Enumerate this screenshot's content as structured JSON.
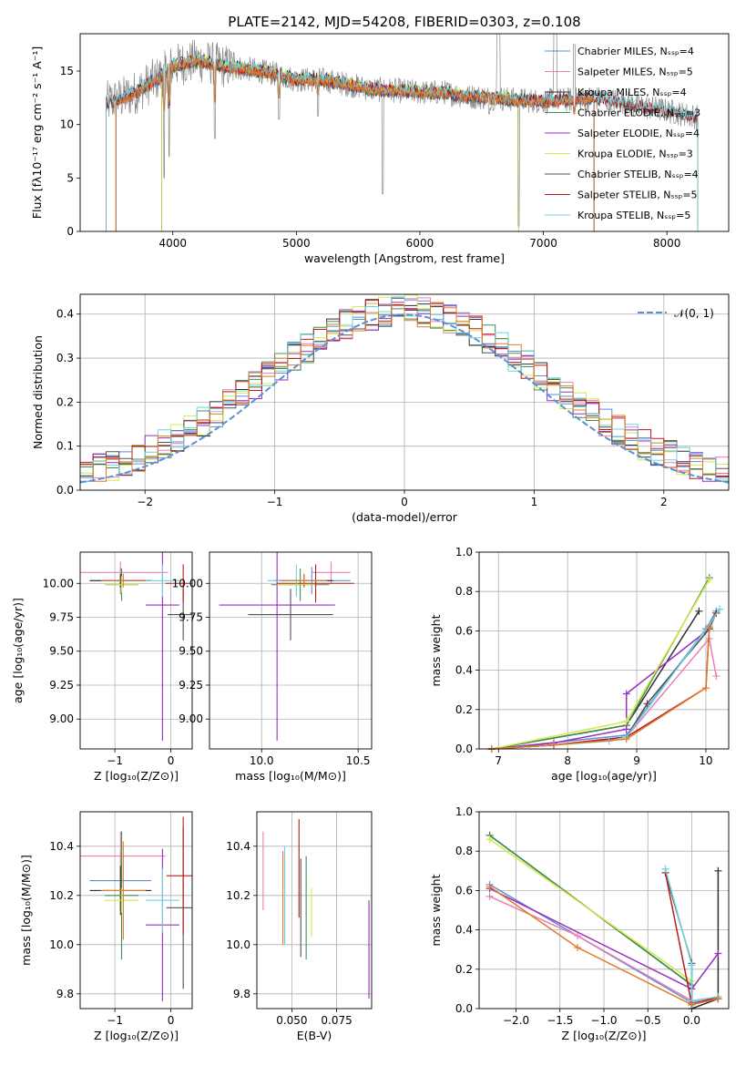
{
  "title": "PLATE=2142, MJD=54208, FIBERID=0303, z=0.108",
  "colors": {
    "Chabrier MILES": "#5b8fd6",
    "Salpeter MILES": "#e87fb5",
    "Kroupa MILES": "#2f2f2f",
    "Chabrier ELODIE": "#3f8f52",
    "Salpeter ELODIE": "#9b2fbf",
    "Kroupa ELODIE": "#d6e84a",
    "Chabrier STELIB": "#505050",
    "Salpeter STELIB": "#b81c1c",
    "Kroupa STELIB": "#6fd3de",
    "extra_orange": "#e07b2a",
    "gauss": "#5b8fd6"
  },
  "chart_data": [
    {
      "type": "line",
      "name": "spectrum",
      "xlabel": "wavelength [Angstrom, rest frame]",
      "ylabel": "Flux [fλ10⁻¹⁷ erg cm⁻² s⁻¹ A⁻¹]",
      "xlim": [
        3250,
        8500
      ],
      "ylim": [
        0,
        18.5
      ],
      "xticks": [
        4000,
        5000,
        6000,
        7000,
        8000
      ],
      "yticks": [
        0,
        5,
        10,
        15
      ],
      "legend_position": "top-right",
      "legend": [
        {
          "label": "Chabrier MILES, Nₛₛₚ=4",
          "color_key": "Chabrier MILES"
        },
        {
          "label": "Salpeter MILES, Nₛₛₚ=5",
          "color_key": "Salpeter MILES"
        },
        {
          "label": "Kroupa MILES, Nₛₛₚ=4",
          "color_key": "Kroupa MILES"
        },
        {
          "label": "Chabrier ELODIE, Nₛₛₚ=3",
          "color_key": "Chabrier ELODIE"
        },
        {
          "label": "Salpeter ELODIE, Nₛₛₚ=4",
          "color_key": "Salpeter ELODIE"
        },
        {
          "label": "Kroupa ELODIE, Nₛₛₚ=3",
          "color_key": "Kroupa ELODIE"
        },
        {
          "label": "Chabrier STELIB, Nₛₛₚ=4",
          "color_key": "Chabrier STELIB"
        },
        {
          "label": "Salpeter STELIB, Nₛₛₚ=5",
          "color_key": "Salpeter STELIB"
        },
        {
          "label": "Kroupa STELIB, Nₛₛₚ=5",
          "color_key": "Kroupa STELIB"
        }
      ],
      "continuum": [
        [
          3450,
          12.0
        ],
        [
          3600,
          12.5
        ],
        [
          3700,
          13.0
        ],
        [
          3800,
          13.8
        ],
        [
          3900,
          14.5
        ],
        [
          4000,
          15.5
        ],
        [
          4200,
          16.0
        ],
        [
          4400,
          15.5
        ],
        [
          4600,
          15.2
        ],
        [
          4800,
          14.8
        ],
        [
          5000,
          14.2
        ],
        [
          5200,
          14.2
        ],
        [
          5400,
          13.8
        ],
        [
          5600,
          13.3
        ],
        [
          5800,
          13.2
        ],
        [
          6000,
          13.0
        ],
        [
          6200,
          13.0
        ],
        [
          6400,
          12.6
        ],
        [
          6600,
          12.5
        ],
        [
          6800,
          12.3
        ],
        [
          7000,
          12.2
        ],
        [
          7200,
          12.3
        ],
        [
          7400,
          12.5
        ],
        [
          7600,
          12.2
        ],
        [
          7800,
          11.7
        ],
        [
          8000,
          11.3
        ],
        [
          8250,
          10.7
        ]
      ],
      "dips": [
        [
          3930,
          5.0
        ],
        [
          3970,
          7.0
        ],
        [
          4340,
          8.7
        ],
        [
          4860,
          10.5
        ],
        [
          5175,
          10.8
        ],
        [
          5700,
          3.5
        ],
        [
          6560,
          11.0
        ],
        [
          6800,
          0.5
        ],
        [
          7250,
          9.0
        ]
      ]
    },
    {
      "type": "line",
      "name": "residual-histogram",
      "xlabel": "(data-model)/error",
      "ylabel": "Normed distribution",
      "xlim": [
        -2.5,
        2.5
      ],
      "ylim": [
        0,
        0.445
      ],
      "xticks": [
        -2,
        -1,
        0,
        1,
        2
      ],
      "yticks": [
        0.0,
        0.1,
        0.2,
        0.3,
        0.4
      ],
      "legend": "𝒩(0, 1)",
      "bin_width": 0.1
    },
    {
      "type": "scatter",
      "name": "age-vs-Z",
      "xlabel": "Z [log₁₀(Z/Z⊙)]",
      "ylabel": "age  [log₁₀(age/yr)]",
      "xlim": [
        -1.62,
        0.38
      ],
      "ylim": [
        8.78,
        10.23
      ],
      "xticks": [
        -1,
        0
      ],
      "yticks": [
        9.0,
        9.25,
        9.5,
        9.75,
        10.0
      ],
      "points": [
        {
          "c": "Chabrier MILES",
          "x": -0.9,
          "xe": 0.55,
          "y": 10.02,
          "ye": 0.1
        },
        {
          "c": "Salpeter MILES",
          "x": -0.9,
          "xe": 0.85,
          "y": 10.08,
          "ye": 0.08
        },
        {
          "c": "Kroupa MILES",
          "x": -0.9,
          "xe": 0.55,
          "y": 10.02,
          "ye": 0.05
        },
        {
          "c": "Chabrier ELODIE",
          "x": -0.88,
          "xe": 0.3,
          "y": 9.99,
          "ye": 0.12
        },
        {
          "c": "Salpeter ELODIE",
          "x": -0.15,
          "xe": 0.3,
          "y": 9.84,
          "ye": 1.0
        },
        {
          "c": "Kroupa ELODIE",
          "x": -0.88,
          "xe": 0.3,
          "y": 9.99,
          "ye": 0.06
        },
        {
          "c": "Chabrier STELIB",
          "x": 0.22,
          "xe": 0.28,
          "y": 9.77,
          "ye": 0.19
        },
        {
          "c": "Salpeter STELIB",
          "x": 0.22,
          "xe": 0.32,
          "y": 10.0,
          "ye": 0.14
        },
        {
          "c": "Kroupa STELIB",
          "x": -0.15,
          "xe": 0.3,
          "y": 10.02,
          "ye": 0.12
        },
        {
          "c": "extra_orange",
          "x": -0.85,
          "xe": 0.4,
          "y": 10.02,
          "ye": 0.05
        }
      ]
    },
    {
      "type": "scatter",
      "name": "age-vs-mass",
      "xlabel": "mass [log₁₀(M/M⊙)]",
      "ylabel": "",
      "xlim": [
        9.73,
        10.57
      ],
      "ylim": [
        8.78,
        10.23
      ],
      "xticks": [
        10.0,
        10.5
      ],
      "yticks": [
        9.0,
        9.25,
        9.5,
        9.75,
        10.0
      ],
      "points": [
        {
          "c": "Chabrier MILES",
          "x": 10.26,
          "xe": 0.2,
          "y": 10.02,
          "ye": 0.1
        },
        {
          "c": "Salpeter MILES",
          "x": 10.36,
          "xe": 0.1,
          "y": 10.08,
          "ye": 0.08
        },
        {
          "c": "Kroupa MILES",
          "x": 10.22,
          "xe": 0.15,
          "y": 10.02,
          "ye": 0.05
        },
        {
          "c": "Chabrier ELODIE",
          "x": 10.2,
          "xe": 0.15,
          "y": 9.99,
          "ye": 0.12
        },
        {
          "c": "Salpeter ELODIE",
          "x": 10.08,
          "xe": 0.3,
          "y": 9.84,
          "ye": 1.0
        },
        {
          "c": "Kroupa ELODIE",
          "x": 10.18,
          "xe": 0.1,
          "y": 9.99,
          "ye": 0.06
        },
        {
          "c": "Chabrier STELIB",
          "x": 10.15,
          "xe": 0.22,
          "y": 9.77,
          "ye": 0.19
        },
        {
          "c": "Salpeter STELIB",
          "x": 10.28,
          "xe": 0.2,
          "y": 10.0,
          "ye": 0.14
        },
        {
          "c": "Kroupa STELIB",
          "x": 10.18,
          "xe": 0.15,
          "y": 10.02,
          "ye": 0.12
        },
        {
          "c": "extra_orange",
          "x": 10.22,
          "xe": 0.12,
          "y": 10.02,
          "ye": 0.05
        }
      ]
    },
    {
      "type": "line",
      "name": "mass-weight-vs-age",
      "xlabel": "age  [log₁₀(age/yr)]",
      "ylabel": "mass weight",
      "xlim": [
        6.72,
        10.33
      ],
      "ylim": [
        0,
        1.0
      ],
      "xticks": [
        7,
        8,
        9,
        10
      ],
      "yticks": [
        0.0,
        0.2,
        0.4,
        0.6,
        0.8,
        1.0
      ],
      "series": [
        {
          "c": "Chabrier MILES",
          "pts": [
            [
              6.9,
              0.0
            ],
            [
              8.85,
              0.07
            ],
            [
              10.0,
              0.61
            ],
            [
              10.15,
              0.7
            ]
          ]
        },
        {
          "c": "Salpeter MILES",
          "pts": [
            [
              6.9,
              0.0
            ],
            [
              7.8,
              0.02
            ],
            [
              8.85,
              0.06
            ],
            [
              10.05,
              0.56
            ],
            [
              10.15,
              0.37
            ]
          ]
        },
        {
          "c": "Kroupa MILES",
          "pts": [
            [
              6.9,
              0.0
            ],
            [
              8.85,
              0.12
            ],
            [
              9.9,
              0.7
            ]
          ]
        },
        {
          "c": "Chabrier ELODIE",
          "pts": [
            [
              6.9,
              0.0
            ],
            [
              8.85,
              0.12
            ],
            [
              10.05,
              0.87
            ]
          ]
        },
        {
          "c": "Salpeter ELODIE",
          "pts": [
            [
              6.9,
              0.0
            ],
            [
              7.8,
              0.03
            ],
            [
              8.85,
              0.1
            ],
            [
              8.85,
              0.28
            ],
            [
              10.05,
              0.61
            ]
          ]
        },
        {
          "c": "Kroupa ELODIE",
          "pts": [
            [
              6.9,
              0.0
            ],
            [
              8.85,
              0.14
            ],
            [
              10.05,
              0.86
            ]
          ]
        },
        {
          "c": "Chabrier STELIB",
          "pts": [
            [
              6.9,
              0.0
            ],
            [
              7.8,
              0.02
            ],
            [
              8.85,
              0.06
            ],
            [
              9.15,
              0.23
            ],
            [
              10.05,
              0.61
            ],
            [
              10.15,
              0.69
            ]
          ]
        },
        {
          "c": "Salpeter STELIB",
          "pts": [
            [
              6.9,
              0.0
            ],
            [
              7.8,
              0.02
            ],
            [
              8.85,
              0.06
            ],
            [
              10.0,
              0.31
            ],
            [
              10.05,
              0.62
            ],
            [
              10.15,
              0.69
            ]
          ]
        },
        {
          "c": "Kroupa STELIB",
          "pts": [
            [
              6.9,
              0.0
            ],
            [
              7.8,
              0.02
            ],
            [
              8.6,
              0.04
            ],
            [
              8.85,
              0.06
            ],
            [
              10.05,
              0.63
            ],
            [
              10.2,
              0.71
            ]
          ]
        },
        {
          "c": "extra_orange",
          "pts": [
            [
              6.9,
              0.0
            ],
            [
              7.8,
              0.02
            ],
            [
              8.85,
              0.05
            ],
            [
              10.0,
              0.31
            ],
            [
              10.05,
              0.62
            ]
          ]
        }
      ]
    },
    {
      "type": "scatter",
      "name": "mass-vs-Z",
      "xlabel": "Z [log₁₀(Z/Z⊙)]",
      "ylabel": "mass [log₁₀(M/M⊙)]",
      "xlim": [
        -1.62,
        0.38
      ],
      "ylim": [
        9.74,
        10.54
      ],
      "xticks": [
        -1,
        0
      ],
      "yticks": [
        9.8,
        10.0,
        10.2,
        10.4
      ],
      "points": [
        {
          "c": "Chabrier MILES",
          "x": -0.9,
          "xe": 0.55,
          "y": 10.26,
          "ye": 0.12
        },
        {
          "c": "Salpeter MILES",
          "x": -0.9,
          "xe": 0.8,
          "y": 10.36,
          "ye": 0.1
        },
        {
          "c": "Kroupa MILES",
          "x": -0.9,
          "xe": 0.55,
          "y": 10.22,
          "ye": 0.1
        },
        {
          "c": "Chabrier ELODIE",
          "x": -0.88,
          "xe": 0.3,
          "y": 10.2,
          "ye": 0.26
        },
        {
          "c": "Salpeter ELODIE",
          "x": -0.15,
          "xe": 0.3,
          "y": 10.08,
          "ye": 0.31
        },
        {
          "c": "Kroupa ELODIE",
          "x": -0.88,
          "xe": 0.3,
          "y": 10.18,
          "ye": 0.05
        },
        {
          "c": "Chabrier STELIB",
          "x": 0.22,
          "xe": 0.3,
          "y": 10.15,
          "ye": 0.33
        },
        {
          "c": "Salpeter STELIB",
          "x": 0.22,
          "xe": 0.3,
          "y": 10.28,
          "ye": 0.24
        },
        {
          "c": "Kroupa STELIB",
          "x": -0.15,
          "xe": 0.3,
          "y": 10.18,
          "ye": 0.13
        },
        {
          "c": "extra_orange",
          "x": -0.85,
          "xe": 0.4,
          "y": 10.22,
          "ye": 0.2
        }
      ]
    },
    {
      "type": "scatter",
      "name": "mass-vs-ebv",
      "xlabel": "E(B-V)",
      "ylabel": "",
      "xlim": [
        0.0305,
        0.0945
      ],
      "ylim": [
        9.74,
        10.54
      ],
      "xticks": [
        0.05,
        0.075
      ],
      "yticks": [
        9.8,
        10.0,
        10.2,
        10.4
      ],
      "points": [
        {
          "c": "Salpeter MILES",
          "x": 0.034,
          "y": 10.3,
          "ye": 0.16
        },
        {
          "c": "extra_orange",
          "x": 0.045,
          "y": 10.19,
          "ye": 0.19
        },
        {
          "c": "Kroupa STELIB",
          "x": 0.046,
          "y": 10.2,
          "ye": 0.2
        },
        {
          "c": "Salpeter STELIB",
          "x": 0.054,
          "y": 10.31,
          "ye": 0.2
        },
        {
          "c": "Chabrier STELIB",
          "x": 0.055,
          "y": 10.15,
          "ye": 0.2
        },
        {
          "c": "Chabrier ELODIE",
          "x": 0.058,
          "y": 10.15,
          "ye": 0.21
        },
        {
          "c": "Kroupa ELODIE",
          "x": 0.061,
          "y": 10.13,
          "ye": 0.1
        },
        {
          "c": "Salpeter ELODIE",
          "x": 0.093,
          "y": 9.98,
          "ye": 0.2
        }
      ]
    },
    {
      "type": "line",
      "name": "mass-weight-vs-Z",
      "xlabel": "Z [log₁₀(Z/Z⊙)]",
      "ylabel": "mass weight",
      "xlim": [
        -2.42,
        0.42
      ],
      "ylim": [
        0,
        1.0
      ],
      "xticks": [
        -2.0,
        -1.5,
        -1.0,
        -0.5,
        0.0
      ],
      "yticks": [
        0.0,
        0.2,
        0.4,
        0.6,
        0.8,
        1.0
      ],
      "series": [
        {
          "c": "Chabrier MILES",
          "pts": [
            [
              -2.3,
              0.63
            ],
            [
              0.0,
              0.03
            ],
            [
              0.3,
              0.05
            ]
          ]
        },
        {
          "c": "Salpeter MILES",
          "pts": [
            [
              -2.3,
              0.57
            ],
            [
              -1.3,
              0.37
            ],
            [
              0.0,
              0.04
            ],
            [
              0.3,
              0.05
            ]
          ]
        },
        {
          "c": "Kroupa MILES",
          "pts": [
            [
              -2.3,
              0.88
            ],
            [
              0.0,
              0.12
            ],
            [
              0.0,
              0.0
            ],
            [
              0.3,
              0.05
            ],
            [
              0.3,
              0.7
            ]
          ]
        },
        {
          "c": "Chabrier ELODIE",
          "pts": [
            [
              -2.3,
              0.88
            ],
            [
              0.0,
              0.12
            ]
          ]
        },
        {
          "c": "Salpeter ELODIE",
          "pts": [
            [
              -2.3,
              0.61
            ],
            [
              0.0,
              0.1
            ],
            [
              0.3,
              0.28
            ]
          ]
        },
        {
          "c": "Kroupa ELODIE",
          "pts": [
            [
              -2.3,
              0.86
            ],
            [
              0.0,
              0.14
            ]
          ]
        },
        {
          "c": "Chabrier STELIB",
          "pts": [
            [
              -0.3,
              0.69
            ],
            [
              0.0,
              0.23
            ],
            [
              0.0,
              0.02
            ],
            [
              0.3,
              0.06
            ]
          ]
        },
        {
          "c": "Salpeter STELIB",
          "pts": [
            [
              -0.3,
              0.69
            ],
            [
              0.0,
              0.02
            ],
            [
              0.3,
              0.06
            ]
          ]
        },
        {
          "c": "Kroupa STELIB",
          "pts": [
            [
              -0.3,
              0.71
            ],
            [
              0.0,
              0.22
            ],
            [
              0.0,
              0.04
            ],
            [
              0.3,
              0.06
            ]
          ]
        },
        {
          "c": "extra_orange",
          "pts": [
            [
              -2.3,
              0.62
            ],
            [
              -1.3,
              0.31
            ],
            [
              0.0,
              0.02
            ],
            [
              0.3,
              0.05
            ]
          ]
        }
      ]
    }
  ]
}
